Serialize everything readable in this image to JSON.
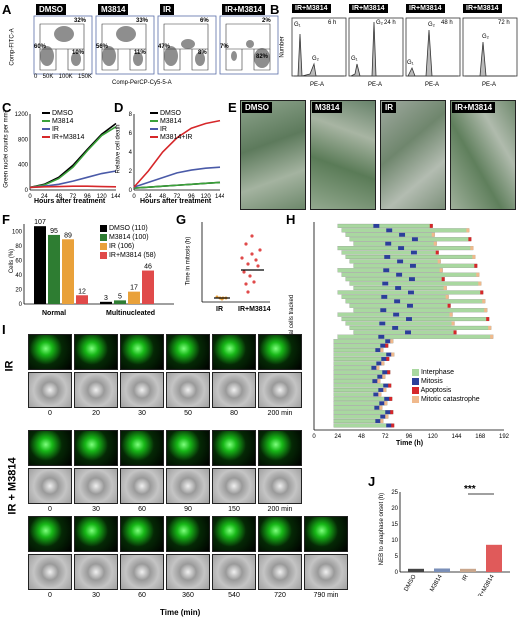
{
  "panels": {
    "A": {
      "label": "A",
      "groups": [
        "DMSO",
        "M3814",
        "IR",
        "IR+M3814"
      ],
      "quadrant_labels": [
        {
          "s": "S",
          "g1": "60%",
          "s_pct": "32%",
          "g0g1": "G₀-G₁",
          "g2m": "G₂-M",
          "g2m_pct": "10%"
        },
        {
          "s": "S",
          "g1": "56%",
          "s_pct": "33%",
          "g0g1": "G₀-G₁",
          "g2m": "G₂-M",
          "g2m_pct": "11%"
        },
        {
          "s": "S",
          "g1": "47%",
          "s_pct": "6%",
          "g0g1": "G₀-G₁",
          "g2m": "G₂-M",
          "g2m_pct": "8%"
        },
        {
          "s": "S",
          "g1": "7%",
          "s_pct": "2%",
          "g0g1": "G₀-G₁",
          "g2m": "G₂-M",
          "g2m_pct": "82%"
        }
      ],
      "y_axis": "Comp-FITC-A",
      "x_axis": "Comp-PerCP-Cy5-5-A",
      "x_ticks": [
        "0",
        "50K",
        "100K",
        "150K"
      ]
    },
    "B": {
      "label": "B",
      "titles": [
        "IR+M3814",
        "IR+M3814",
        "IR+M3814",
        "IR+M3814"
      ],
      "times": [
        "6 h",
        "24 h",
        "48 h",
        "72 h"
      ],
      "y_axis": "Number",
      "x_axis": "PE-A",
      "peaks": [
        [
          "G₁",
          "G₂"
        ],
        [
          "G₂",
          "G₁"
        ],
        [
          "G₂",
          "G₁"
        ],
        [
          "G₂"
        ]
      ],
      "x_ticks": [
        "0",
        "50",
        "100",
        "150",
        "200",
        "250"
      ]
    },
    "C": {
      "label": "C",
      "y_axis": "Green nuclei counts per mm²",
      "x_axis": "Hours after treatment",
      "legend": [
        "DMSO",
        "M3814",
        "IR",
        "IR+M3814"
      ],
      "colors": [
        "#000000",
        "#3aa23a",
        "#4a5aa8",
        "#d6272a"
      ],
      "x_ticks": [
        "0",
        "24",
        "48",
        "72",
        "96",
        "120",
        "144"
      ],
      "y_ticks": [
        "0",
        "400",
        "800",
        "1200"
      ],
      "chart_data": {
        "type": "line",
        "x": [
          0,
          24,
          48,
          72,
          96,
          120,
          144
        ],
        "series": [
          {
            "name": "DMSO",
            "values": [
              40,
              90,
              200,
              390,
              640,
              880,
              1050
            ]
          },
          {
            "name": "M3814",
            "values": [
              40,
              80,
              180,
              360,
              620,
              860,
              1000
            ]
          },
          {
            "name": "IR",
            "values": [
              40,
              60,
              90,
              140,
              200,
              260,
              300
            ]
          },
          {
            "name": "IR+M3814",
            "values": [
              40,
              50,
              55,
              60,
              60,
              55,
              50
            ]
          }
        ],
        "ylim": [
          0,
          1200
        ],
        "xlim": [
          0,
          144
        ]
      }
    },
    "D": {
      "label": "D",
      "y_axis": "Relative cell death",
      "x_axis": "Hours after treatment",
      "legend": [
        "DMSO",
        "M3814",
        "IR",
        "M3814+IR"
      ],
      "x_ticks": [
        "0",
        "24",
        "48",
        "72",
        "96",
        "120",
        "144"
      ],
      "y_ticks": [
        "0",
        "2",
        "4",
        "6",
        "8"
      ],
      "chart_data": {
        "type": "line",
        "x": [
          0,
          24,
          48,
          72,
          96,
          120,
          144
        ],
        "series": [
          {
            "name": "DMSO",
            "values": [
              0.2,
              0.3,
              0.4,
              0.5,
              0.6,
              0.7,
              0.8
            ]
          },
          {
            "name": "M3814",
            "values": [
              0.2,
              0.3,
              0.4,
              0.5,
              0.6,
              0.7,
              0.8
            ]
          },
          {
            "name": "IR",
            "values": [
              0.3,
              0.8,
              1.3,
              1.8,
              2.1,
              2.3,
              2.4
            ]
          },
          {
            "name": "M3814+IR",
            "values": [
              0.3,
              2.0,
              4.0,
              5.5,
              6.5,
              7.0,
              7.3
            ]
          }
        ],
        "ylim": [
          0,
          8
        ],
        "xlim": [
          0,
          144
        ]
      }
    },
    "E": {
      "label": "E",
      "titles": [
        "DMSO",
        "M3814",
        "IR",
        "IR+M3814"
      ]
    },
    "F": {
      "label": "F",
      "y_axis": "Cells (%)",
      "groups": [
        "Normal",
        "Multinucleated"
      ],
      "legend": [
        "DMSO (110)",
        "M3814 (100)",
        "IR (106)",
        "IR+M3814 (58)"
      ],
      "y_ticks": [
        "0",
        "20",
        "40",
        "60",
        "80",
        "100"
      ],
      "chart_data": {
        "type": "bar",
        "categories": [
          "Normal",
          "Multinucleated"
        ],
        "series": [
          {
            "name": "DMSO (110)",
            "values": [
              107,
              3
            ]
          },
          {
            "name": "M3814 (100)",
            "values": [
              95,
              5
            ]
          },
          {
            "name": "IR (106)",
            "values": [
              89,
              17
            ]
          },
          {
            "name": "IR+M3814 (58)",
            "values": [
              12,
              46
            ]
          }
        ],
        "ylim": [
          0,
          110
        ]
      },
      "value_labels": [
        "107",
        "95",
        "89",
        "12",
        "3",
        "5",
        "17",
        "46"
      ]
    },
    "G": {
      "label": "G",
      "y_axis": "Time in mitosis (h)",
      "categories": [
        "IR",
        "IR+M3814"
      ],
      "y_ticks": [
        "0",
        "5",
        "10",
        "15",
        "20"
      ]
    },
    "H": {
      "label": "H",
      "y_axis": "Individual cells tracked",
      "x_axis": "Time (h)",
      "x_ticks": [
        "0",
        "24",
        "48",
        "72",
        "96",
        "120",
        "144",
        "168",
        "192"
      ],
      "legend": [
        "Interphase",
        "Mitosis",
        "Apoptosis",
        "Mitotic catastrophe"
      ],
      "colors": [
        "#a9d8a0",
        "#2b3f9a",
        "#d6272a",
        "#f0b98c"
      ]
    },
    "I": {
      "label": "I",
      "row_labels": [
        "IR",
        "IR + M3814"
      ],
      "ir_times": [
        "0",
        "20",
        "30",
        "50",
        "80",
        "200 min"
      ],
      "combo1_times": [
        "0",
        "30",
        "60",
        "90",
        "150",
        "200 min"
      ],
      "combo2_times": [
        "0",
        "30",
        "60",
        "360",
        "540",
        "720",
        "790 min"
      ],
      "x_axis": "Time (min)"
    },
    "J": {
      "label": "J",
      "y_axis": "NEB to anaphase onset (h)",
      "categories": [
        "DMSO",
        "M3814",
        "IR",
        "IR+M3814"
      ],
      "y_ticks": [
        "0",
        "5",
        "10",
        "15",
        "20",
        "25"
      ],
      "significance": "***",
      "chart_data": {
        "type": "bar",
        "categories": [
          "DMSO",
          "M3814",
          "IR",
          "IR+M3814"
        ],
        "values": [
          1.0,
          1.1,
          1.0,
          8.5
        ],
        "ylim": [
          0,
          25
        ]
      }
    }
  }
}
